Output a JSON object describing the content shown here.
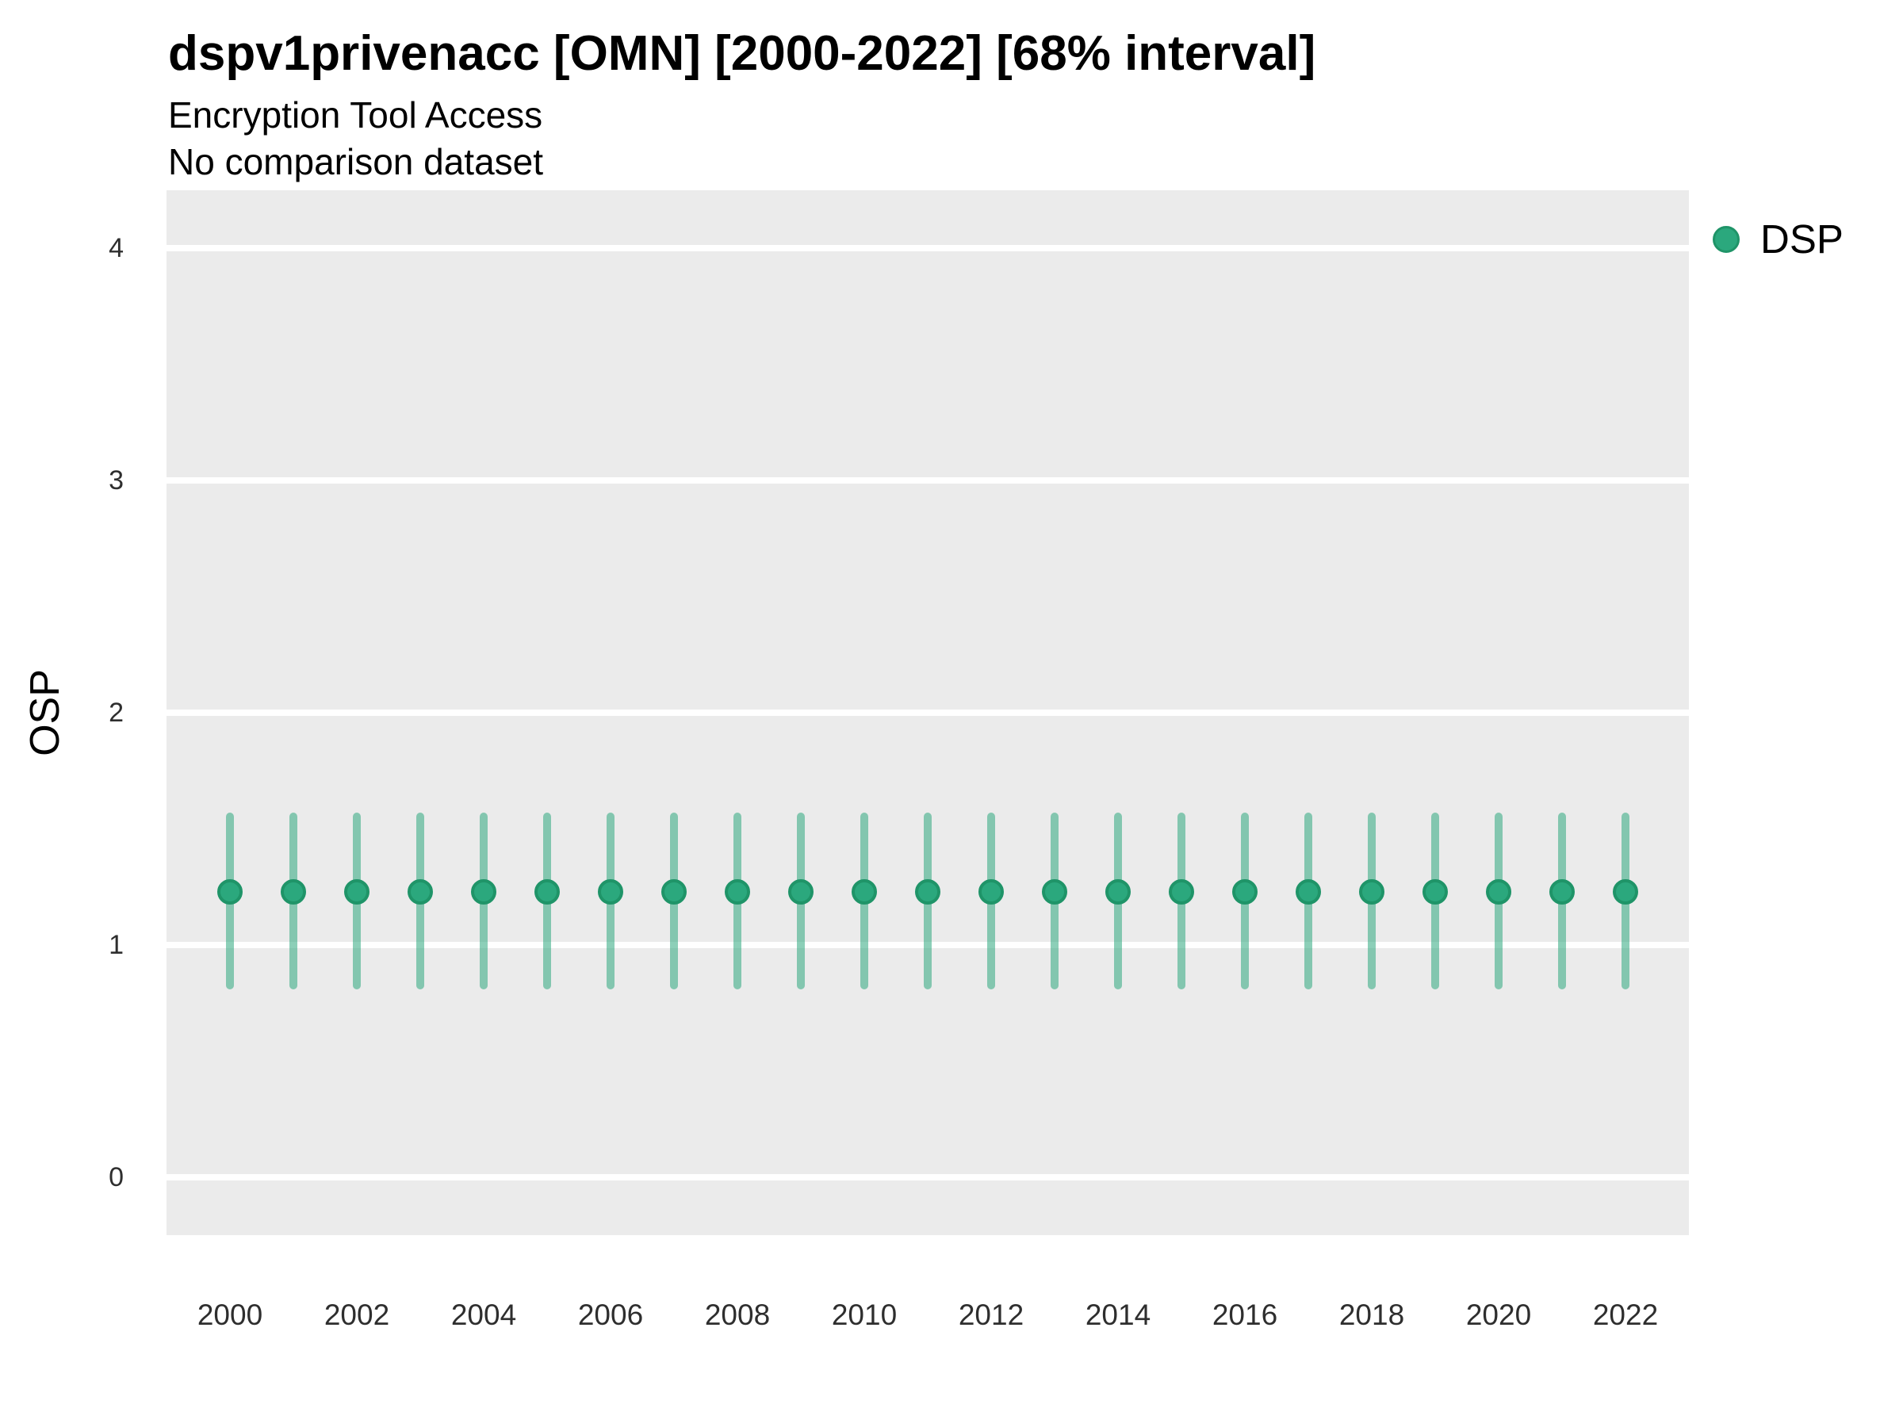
{
  "header": {
    "title": "dspv1privenacc [OMN] [2000-2022] [68% interval]",
    "subtitle": "Encryption Tool Access",
    "note": "No comparison dataset"
  },
  "axes": {
    "y_label": "OSP",
    "y_ticks": [
      0,
      1,
      2,
      3,
      4
    ],
    "x_ticks": [
      2000,
      2002,
      2004,
      2006,
      2008,
      2010,
      2012,
      2014,
      2016,
      2018,
      2020,
      2022
    ]
  },
  "legend": {
    "items": [
      {
        "label": "DSP",
        "symbol": "circle"
      }
    ]
  },
  "colors": {
    "panel_bg": "#EBEBEB",
    "gridline": "#FFFFFF",
    "point_fill": "#2BA87D",
    "point_stroke": "#1F9468",
    "interval_bar": "rgba(45,168,125,0.55)",
    "tick_text": "#2e2e2e",
    "title_text": "#000000"
  },
  "chart_data": {
    "type": "scatter",
    "title": "dspv1privenacc [OMN] [2000-2022] [68% interval]",
    "subtitle": "Encryption Tool Access",
    "note": "No comparison dataset",
    "xlabel": "",
    "ylabel": "OSP",
    "interval": "68%",
    "legend_position": "right",
    "grid": "horizontal-major-only",
    "xlim": [
      1999,
      2023
    ],
    "ylim": [
      -0.25,
      4.25
    ],
    "x": [
      2000,
      2001,
      2002,
      2003,
      2004,
      2005,
      2006,
      2007,
      2008,
      2009,
      2010,
      2011,
      2012,
      2013,
      2014,
      2015,
      2016,
      2017,
      2018,
      2019,
      2020,
      2021,
      2022
    ],
    "series": [
      {
        "name": "DSP",
        "values": [
          1.23,
          1.23,
          1.23,
          1.23,
          1.23,
          1.23,
          1.23,
          1.23,
          1.23,
          1.23,
          1.23,
          1.23,
          1.23,
          1.23,
          1.23,
          1.23,
          1.23,
          1.23,
          1.23,
          1.23,
          1.23,
          1.23,
          1.23
        ],
        "low": [
          0.81,
          0.81,
          0.81,
          0.81,
          0.81,
          0.81,
          0.81,
          0.81,
          0.81,
          0.81,
          0.81,
          0.81,
          0.81,
          0.81,
          0.81,
          0.81,
          0.81,
          0.81,
          0.81,
          0.81,
          0.81,
          0.81,
          0.81
        ],
        "high": [
          1.57,
          1.57,
          1.57,
          1.57,
          1.57,
          1.57,
          1.57,
          1.57,
          1.57,
          1.57,
          1.57,
          1.57,
          1.57,
          1.57,
          1.57,
          1.57,
          1.57,
          1.57,
          1.57,
          1.57,
          1.57,
          1.57,
          1.57
        ]
      }
    ]
  }
}
